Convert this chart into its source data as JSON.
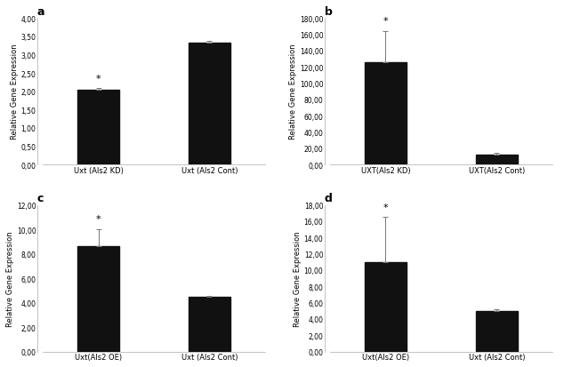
{
  "panel_a": {
    "title": "a",
    "categories": [
      "Uxt (Als2 KD)",
      "Uxt (Als2 Cont)"
    ],
    "values": [
      2.03,
      3.33
    ],
    "errors": [
      0.05,
      0.05
    ],
    "star_idx": 0,
    "ylim": [
      0,
      4.0
    ],
    "yticks": [
      0.0,
      0.5,
      1.0,
      1.5,
      2.0,
      2.5,
      3.0,
      3.5,
      4.0
    ],
    "ytick_labels": [
      "0,00",
      "0,50",
      "1,00",
      "1,50",
      "2,00",
      "2,50",
      "3,00",
      "3,50",
      "4,00"
    ],
    "ylabel": "Relative Gene Expression"
  },
  "panel_b": {
    "title": "b",
    "categories": [
      "UXT(Als2 KD)",
      "UXT(Als2 Cont)"
    ],
    "values": [
      126.0,
      12.0
    ],
    "errors": [
      38.0,
      2.0
    ],
    "star_idx": 0,
    "ylim": [
      0,
      180.0
    ],
    "yticks": [
      0.0,
      20.0,
      40.0,
      60.0,
      80.0,
      100.0,
      120.0,
      140.0,
      160.0,
      180.0
    ],
    "ytick_labels": [
      "0,00",
      "20,00",
      "40,00",
      "60,00",
      "80,00",
      "100,00",
      "120,00",
      "140,00",
      "160,00",
      "180,00"
    ],
    "ylabel": "Relative Gene Expression"
  },
  "panel_c": {
    "title": "c",
    "categories": [
      "Uxt(Als2 OE)",
      "Uxt (Als2 Cont)"
    ],
    "values": [
      8.65,
      4.47
    ],
    "errors": [
      1.35,
      0.08
    ],
    "star_idx": 0,
    "ylim": [
      0,
      12.0
    ],
    "yticks": [
      0.0,
      2.0,
      4.0,
      6.0,
      8.0,
      10.0,
      12.0
    ],
    "ytick_labels": [
      "0,00",
      "2,00",
      "4,00",
      "6,00",
      "8,00",
      "10,00",
      "12,00"
    ],
    "ylabel": "Relative Gene Expression"
  },
  "panel_d": {
    "title": "d",
    "categories": [
      "Uxt(Als2 OE)",
      "Uxt (Als2 Cont)"
    ],
    "values": [
      11.0,
      5.0
    ],
    "errors": [
      5.5,
      0.2
    ],
    "star_idx": 0,
    "ylim": [
      0,
      18.0
    ],
    "yticks": [
      0.0,
      2.0,
      4.0,
      6.0,
      8.0,
      10.0,
      12.0,
      14.0,
      16.0,
      18.0
    ],
    "ytick_labels": [
      "0,00",
      "2,00",
      "4,00",
      "6,00",
      "8,00",
      "10,00",
      "12,00",
      "14,00",
      "16,00",
      "18,00"
    ],
    "ylabel": "Relative Gene Expression"
  },
  "bar_color": "#111111",
  "error_color": "#555555",
  "background_color": "#ffffff",
  "title_fontsize": 9,
  "label_fontsize": 6.0,
  "tick_fontsize": 5.5,
  "ylabel_fontsize": 6.0
}
